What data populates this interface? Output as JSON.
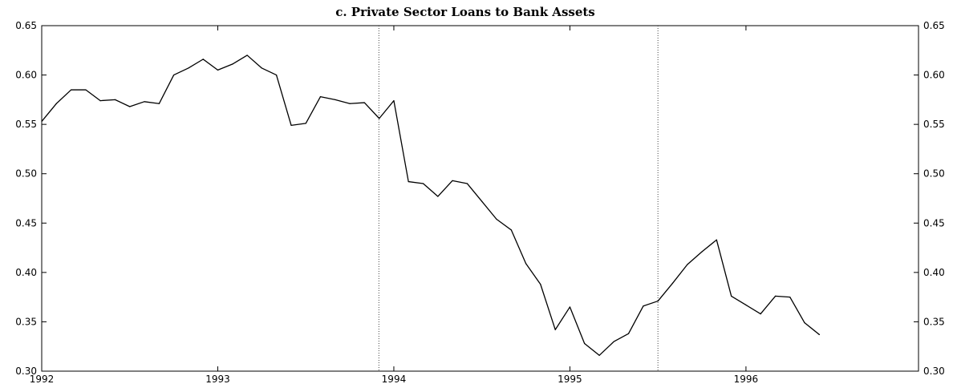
{
  "chart_data": {
    "type": "line",
    "title": "c.  Private Sector Loans to Bank Assets",
    "xlabel": "",
    "ylabel": "",
    "xlim": [
      1992.0,
      1996.98
    ],
    "ylim": [
      0.3,
      0.65
    ],
    "x_ticks": [
      1992,
      1993,
      1994,
      1995,
      1996
    ],
    "x_tick_labels": [
      "1992",
      "1993",
      "1994",
      "1995",
      "1996"
    ],
    "y_ticks": [
      0.3,
      0.35,
      0.4,
      0.45,
      0.5,
      0.55,
      0.6,
      0.65
    ],
    "y_tick_labels": [
      "0.30",
      "0.35",
      "0.40",
      "0.45",
      "0.50",
      "0.55",
      "0.60",
      "0.65"
    ],
    "y_axis_sides": [
      "left",
      "right"
    ],
    "reference_lines_x": [
      1993.915,
      1995.5
    ],
    "reference_line_style": "dotted",
    "grid": false,
    "legend": "none",
    "line_color": "#000000",
    "series": [
      {
        "x": [
          1992.0,
          1992.083,
          1992.167,
          1992.25,
          1992.333,
          1992.417,
          1992.5,
          1992.583,
          1992.667,
          1992.75,
          1992.833,
          1992.917,
          1993.0,
          1993.083,
          1993.167,
          1993.25,
          1993.333,
          1993.417,
          1993.5,
          1993.583,
          1993.667,
          1993.75,
          1993.833,
          1993.917,
          1994.0,
          1994.083,
          1994.167,
          1994.25,
          1994.333,
          1994.417,
          1994.5,
          1994.583,
          1994.667,
          1994.75,
          1994.833,
          1994.917,
          1995.0,
          1995.083,
          1995.167,
          1995.25,
          1995.333,
          1995.417,
          1995.5,
          1995.583,
          1995.667,
          1995.75,
          1995.833,
          1995.917,
          1996.0,
          1996.083,
          1996.167,
          1996.25,
          1996.333,
          1996.417
        ],
        "values": [
          0.553,
          0.571,
          0.585,
          0.585,
          0.574,
          0.575,
          0.568,
          0.573,
          0.571,
          0.6,
          0.607,
          0.616,
          0.605,
          0.611,
          0.62,
          0.607,
          0.6,
          0.549,
          0.551,
          0.578,
          0.575,
          0.571,
          0.572,
          0.556,
          0.574,
          0.492,
          0.49,
          0.477,
          0.493,
          0.49,
          0.472,
          0.454,
          0.443,
          0.409,
          0.388,
          0.342,
          0.365,
          0.328,
          0.316,
          0.33,
          0.338,
          0.366,
          0.371,
          0.389,
          0.408,
          0.421,
          0.433,
          0.376,
          0.367,
          0.358,
          0.376,
          0.375,
          0.349,
          0.337
        ]
      }
    ]
  }
}
